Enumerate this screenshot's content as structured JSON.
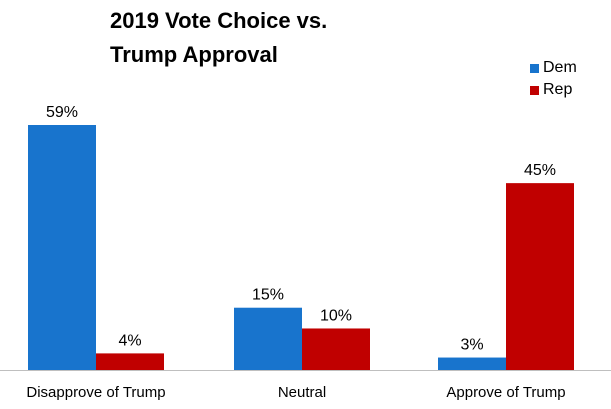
{
  "chart_data": {
    "type": "bar",
    "title_lines": [
      "2019 Vote Choice vs.",
      "Trump Approval"
    ],
    "categories": [
      "Disapprove of Trump",
      "Neutral",
      "Approve of Trump"
    ],
    "series": [
      {
        "name": "Dem",
        "color": "#1874CD",
        "values": [
          59,
          15,
          3
        ],
        "labels": [
          "59%",
          "15%",
          "3%"
        ]
      },
      {
        "name": "Rep",
        "color": "#C00000",
        "values": [
          4,
          10,
          45
        ],
        "labels": [
          "4%",
          "10%",
          "45%"
        ]
      }
    ],
    "ylim": [
      0,
      60
    ],
    "legend_position": "top-right",
    "grid": false,
    "xlabel": "",
    "ylabel": ""
  }
}
